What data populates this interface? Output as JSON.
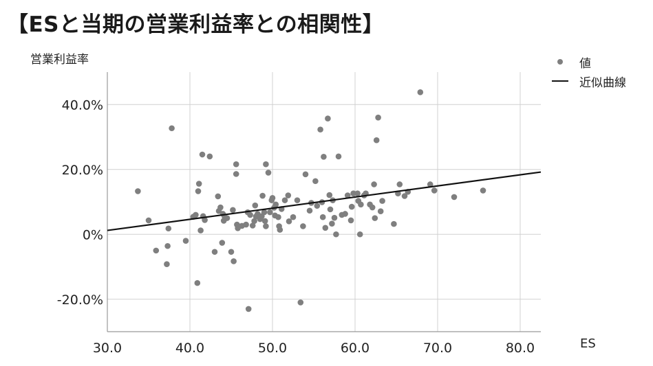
{
  "chart_data": {
    "type": "scatter",
    "title": "【ESと当期の営業利益率との相関性】",
    "xlabel": "ES",
    "ylabel": "営業利益率",
    "xlim": [
      30,
      82.5
    ],
    "ylim": [
      -30,
      50
    ],
    "xticks": [
      30,
      40,
      50,
      60,
      70,
      80
    ],
    "yticks": [
      -20,
      0,
      20,
      40
    ],
    "xtick_labels": [
      "30.0",
      "40.0",
      "50.0",
      "60.0",
      "70.0",
      "80.0"
    ],
    "ytick_labels": [
      "-20.0%",
      "0%",
      "20.0%",
      "40.0%"
    ],
    "grid": true,
    "legend_position": "top-right",
    "legend": {
      "points": "値",
      "line": "近似曲線"
    },
    "colors": {
      "points": "#7f7f7f",
      "trendline": "#111111",
      "grid": "#d0d0d0"
    },
    "trendline": {
      "x": [
        30,
        82.5
      ],
      "y": [
        1.2,
        19.2
      ]
    },
    "points": [
      [
        33.7,
        13.3
      ],
      [
        35.0,
        4.3
      ],
      [
        35.9,
        -5.0
      ],
      [
        37.2,
        -9.2
      ],
      [
        37.3,
        -3.6
      ],
      [
        37.4,
        1.8
      ],
      [
        37.8,
        32.7
      ],
      [
        39.5,
        -2.0
      ],
      [
        40.4,
        5.4
      ],
      [
        40.7,
        6.0
      ],
      [
        40.9,
        -15.0
      ],
      [
        41.0,
        13.3
      ],
      [
        41.1,
        15.6
      ],
      [
        41.3,
        1.2
      ],
      [
        41.5,
        24.6
      ],
      [
        41.6,
        5.6
      ],
      [
        41.8,
        4.4
      ],
      [
        42.4,
        24.0
      ],
      [
        43.0,
        -5.4
      ],
      [
        43.4,
        11.7
      ],
      [
        43.5,
        7.2
      ],
      [
        43.7,
        8.3
      ],
      [
        43.9,
        -2.6
      ],
      [
        44.0,
        6.3
      ],
      [
        44.1,
        4.2
      ],
      [
        44.2,
        5.5
      ],
      [
        44.5,
        5.0
      ],
      [
        45.0,
        -5.4
      ],
      [
        45.2,
        7.5
      ],
      [
        45.3,
        -8.3
      ],
      [
        45.6,
        21.6
      ],
      [
        45.6,
        18.6
      ],
      [
        45.7,
        3.0
      ],
      [
        45.8,
        1.9
      ],
      [
        46.3,
        2.6
      ],
      [
        46.8,
        3.0
      ],
      [
        47.0,
        6.8
      ],
      [
        47.1,
        -23.0
      ],
      [
        47.3,
        6.0
      ],
      [
        47.6,
        2.7
      ],
      [
        47.8,
        4.1
      ],
      [
        47.9,
        8.9
      ],
      [
        48.0,
        5.5
      ],
      [
        48.2,
        6.3
      ],
      [
        48.5,
        4.7
      ],
      [
        48.7,
        5.6
      ],
      [
        48.8,
        11.9
      ],
      [
        49.0,
        6.8
      ],
      [
        49.1,
        4.1
      ],
      [
        49.2,
        2.5
      ],
      [
        49.2,
        21.6
      ],
      [
        49.5,
        19.0
      ],
      [
        49.7,
        6.8
      ],
      [
        49.9,
        10.5
      ],
      [
        50.0,
        11.2
      ],
      [
        50.2,
        8.2
      ],
      [
        50.3,
        5.8
      ],
      [
        50.4,
        9.2
      ],
      [
        50.7,
        5.3
      ],
      [
        50.8,
        2.5
      ],
      [
        50.9,
        1.4
      ],
      [
        51.1,
        7.8
      ],
      [
        51.5,
        10.5
      ],
      [
        51.9,
        12.0
      ],
      [
        52.0,
        4.0
      ],
      [
        52.5,
        5.3
      ],
      [
        53.0,
        10.5
      ],
      [
        53.4,
        -21.0
      ],
      [
        53.7,
        2.5
      ],
      [
        54.0,
        18.5
      ],
      [
        54.5,
        7.3
      ],
      [
        54.7,
        9.7
      ],
      [
        55.2,
        16.4
      ],
      [
        55.4,
        8.8
      ],
      [
        55.8,
        32.3
      ],
      [
        56.0,
        9.9
      ],
      [
        56.1,
        5.3
      ],
      [
        56.2,
        23.9
      ],
      [
        56.4,
        2.0
      ],
      [
        56.7,
        35.7
      ],
      [
        56.9,
        12.1
      ],
      [
        57.0,
        7.7
      ],
      [
        57.2,
        3.3
      ],
      [
        57.3,
        10.5
      ],
      [
        57.5,
        5.1
      ],
      [
        57.7,
        0.0
      ],
      [
        58.0,
        24.0
      ],
      [
        58.4,
        6.0
      ],
      [
        58.8,
        6.3
      ],
      [
        59.1,
        12.0
      ],
      [
        59.5,
        4.3
      ],
      [
        59.6,
        8.5
      ],
      [
        59.8,
        12.6
      ],
      [
        60.3,
        12.6
      ],
      [
        60.4,
        10.3
      ],
      [
        60.6,
        0.0
      ],
      [
        60.7,
        9.2
      ],
      [
        61.1,
        12.0
      ],
      [
        61.3,
        12.6
      ],
      [
        61.8,
        9.2
      ],
      [
        62.1,
        8.3
      ],
      [
        62.3,
        15.4
      ],
      [
        62.4,
        5.0
      ],
      [
        62.6,
        29.0
      ],
      [
        62.8,
        36.0
      ],
      [
        63.1,
        7.1
      ],
      [
        63.3,
        10.3
      ],
      [
        64.7,
        3.2
      ],
      [
        65.2,
        12.6
      ],
      [
        65.4,
        15.4
      ],
      [
        66.0,
        11.8
      ],
      [
        66.4,
        13.1
      ],
      [
        67.9,
        43.8
      ],
      [
        69.1,
        15.4
      ],
      [
        69.6,
        13.5
      ],
      [
        72.0,
        11.5
      ],
      [
        75.5,
        13.5
      ]
    ]
  }
}
